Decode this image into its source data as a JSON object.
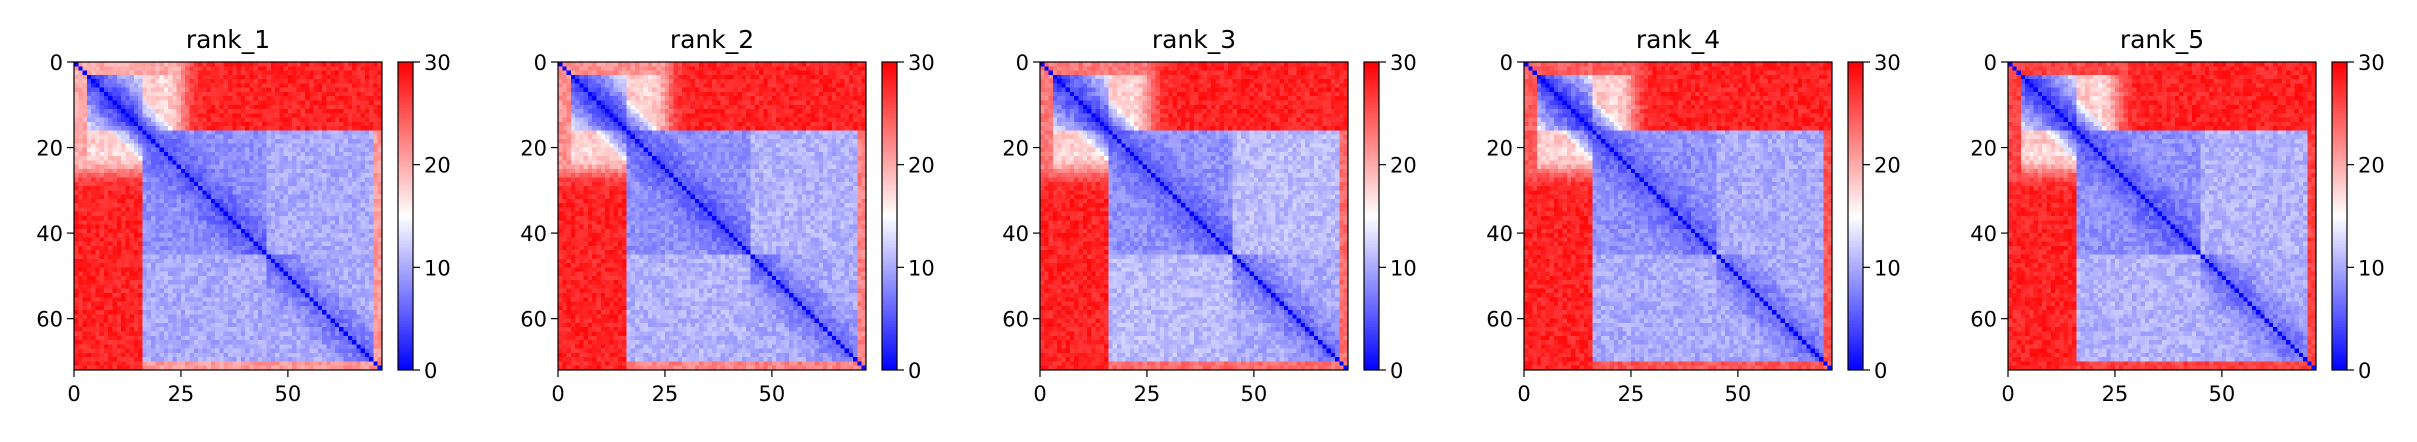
{
  "chart_data": [
    {
      "type": "heatmap",
      "title": "rank_1",
      "size": 72,
      "x_ticks": [
        0,
        25,
        50
      ],
      "y_ticks": [
        0,
        20,
        40,
        60
      ],
      "colorbar": {
        "min": 0,
        "max": 30,
        "ticks": [
          0,
          10,
          20,
          30
        ],
        "colormap": "bwr"
      },
      "blocks": [
        [
          0,
          16
        ],
        [
          16,
          45
        ],
        [
          45,
          72
        ]
      ],
      "variant": 0
    },
    {
      "type": "heatmap",
      "title": "rank_2",
      "size": 72,
      "x_ticks": [
        0,
        25,
        50
      ],
      "y_ticks": [
        0,
        20,
        40,
        60
      ],
      "colorbar": {
        "min": 0,
        "max": 30,
        "ticks": [
          0,
          10,
          20,
          30
        ],
        "colormap": "bwr"
      },
      "blocks": [
        [
          0,
          16
        ],
        [
          16,
          45
        ],
        [
          45,
          72
        ]
      ],
      "variant": 1
    },
    {
      "type": "heatmap",
      "title": "rank_3",
      "size": 72,
      "x_ticks": [
        0,
        25,
        50
      ],
      "y_ticks": [
        0,
        20,
        40,
        60
      ],
      "colorbar": {
        "min": 0,
        "max": 30,
        "ticks": [
          0,
          10,
          20,
          30
        ],
        "colormap": "bwr"
      },
      "blocks": [
        [
          0,
          16
        ],
        [
          16,
          45
        ],
        [
          45,
          72
        ]
      ],
      "variant": 2
    },
    {
      "type": "heatmap",
      "title": "rank_4",
      "size": 72,
      "x_ticks": [
        0,
        25,
        50
      ],
      "y_ticks": [
        0,
        20,
        40,
        60
      ],
      "colorbar": {
        "min": 0,
        "max": 30,
        "ticks": [
          0,
          10,
          20,
          30
        ],
        "colormap": "bwr"
      },
      "blocks": [
        [
          0,
          16
        ],
        [
          16,
          45
        ],
        [
          45,
          72
        ]
      ],
      "variant": 3
    },
    {
      "type": "heatmap",
      "title": "rank_5",
      "size": 72,
      "x_ticks": [
        0,
        25,
        50
      ],
      "y_ticks": [
        0,
        20,
        40,
        60
      ],
      "colorbar": {
        "min": 0,
        "max": 30,
        "ticks": [
          0,
          10,
          20,
          30
        ],
        "colormap": "bwr"
      },
      "blocks": [
        [
          0,
          16
        ],
        [
          16,
          45
        ],
        [
          45,
          72
        ]
      ],
      "variant": 4
    }
  ]
}
